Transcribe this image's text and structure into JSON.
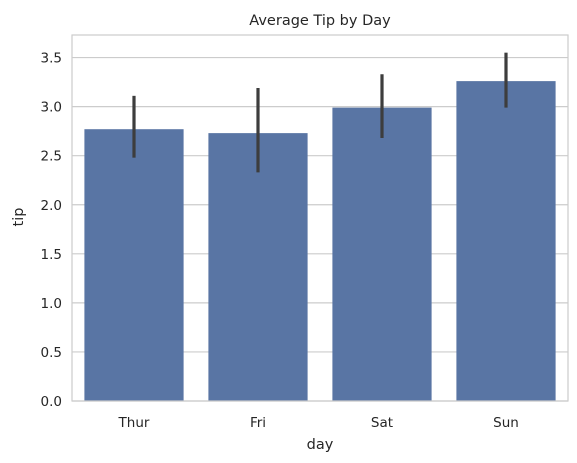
{
  "chart_data": {
    "type": "bar",
    "title": "Average Tip by Day",
    "xlabel": "day",
    "ylabel": "tip",
    "categories": [
      "Thur",
      "Fri",
      "Sat",
      "Sun"
    ],
    "values": [
      2.77,
      2.73,
      2.99,
      3.26
    ],
    "error_bars": [
      {
        "low": 2.48,
        "high": 3.11
      },
      {
        "low": 2.33,
        "high": 3.19
      },
      {
        "low": 2.68,
        "high": 3.33
      },
      {
        "low": 2.99,
        "high": 3.55
      }
    ],
    "ylim": [
      0,
      3.73
    ],
    "yticks": [
      "0.0",
      "0.5",
      "1.0",
      "1.5",
      "2.0",
      "2.5",
      "3.0",
      "3.5"
    ],
    "grid": true,
    "colors": {
      "bar": "#5975a4",
      "error_bar": "#3d3d3d",
      "grid": "#cccccc",
      "spine": "#cccccc"
    }
  }
}
